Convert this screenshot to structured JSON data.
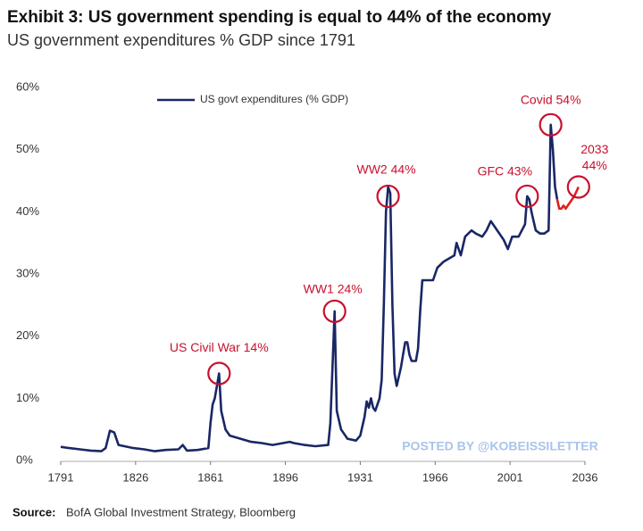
{
  "chart_data": {
    "type": "line",
    "title": "Exhibit 3: US government spending is equal to 44% of the economy",
    "subtitle": "US government expenditures % GDP since 1791",
    "source_label": "Source:",
    "source": "BofA Global Investment Strategy, Bloomberg",
    "watermark": "POSTED BY @KOBEISSILETTER",
    "xlim": [
      1791,
      2036
    ],
    "xticks": [
      1791,
      1826,
      1861,
      1896,
      1931,
      1966,
      2001,
      2036
    ],
    "ylim": [
      0,
      60
    ],
    "yticks": [
      {
        "value": 0,
        "label": "0%"
      },
      {
        "value": 10,
        "label": "10%"
      },
      {
        "value": 20,
        "label": "20%"
      },
      {
        "value": 30,
        "label": "30%"
      },
      {
        "value": 40,
        "label": "40%"
      },
      {
        "value": 50,
        "label": "50%"
      },
      {
        "value": 60,
        "label": "60%"
      }
    ],
    "grid": false,
    "legend": "top-left",
    "series": [
      {
        "name": "US govt expenditures (% GDP)",
        "color": "#1a2766",
        "x": [
          1791,
          1795,
          1800,
          1805,
          1810,
          1812,
          1814,
          1816,
          1818,
          1825,
          1830,
          1835,
          1840,
          1846,
          1848,
          1850,
          1855,
          1860,
          1861,
          1862,
          1863,
          1865,
          1866,
          1868,
          1870,
          1875,
          1880,
          1885,
          1890,
          1898,
          1900,
          1905,
          1910,
          1916,
          1917,
          1918,
          1919,
          1920,
          1922,
          1925,
          1929,
          1931,
          1933,
          1934,
          1935,
          1936,
          1937,
          1938,
          1940,
          1941,
          1942,
          1943,
          1944,
          1945,
          1946,
          1947,
          1948,
          1950,
          1951,
          1952,
          1953,
          1954,
          1955,
          1957,
          1958,
          1959,
          1960,
          1963,
          1965,
          1967,
          1970,
          1975,
          1976,
          1978,
          1980,
          1983,
          1985,
          1988,
          1990,
          1992,
          1995,
          1998,
          2000,
          2002,
          2005,
          2008,
          2009,
          2010,
          2011,
          2013,
          2015,
          2017,
          2019,
          2020,
          2021,
          2022,
          2023
        ],
        "values": [
          2.2,
          2,
          1.8,
          1.6,
          1.5,
          2,
          4.8,
          4.5,
          2.5,
          2,
          1.8,
          1.5,
          1.7,
          1.8,
          2.5,
          1.6,
          1.7,
          2,
          6,
          9,
          10,
          14,
          8,
          5,
          4,
          3.5,
          3,
          2.8,
          2.5,
          3,
          2.8,
          2.5,
          2.3,
          2.5,
          6,
          15,
          24,
          8,
          5,
          3.5,
          3.2,
          4,
          7,
          9.5,
          8.5,
          10,
          8.5,
          8,
          10,
          13,
          25,
          40,
          44,
          43,
          25,
          14,
          12,
          15,
          17,
          19,
          19,
          17,
          16,
          16,
          18,
          24,
          29,
          29,
          29,
          31,
          32,
          33,
          35,
          33,
          36,
          37,
          36.5,
          36,
          37,
          38.5,
          37,
          35.5,
          34,
          36,
          36,
          38,
          42.5,
          42,
          40,
          37,
          36.5,
          36.5,
          37,
          54,
          50,
          44,
          42
        ]
      },
      {
        "color": "#e0201b",
        "x": [
          2023,
          2024,
          2025,
          2026,
          2027,
          2029,
          2031,
          2033
        ],
        "values": [
          42,
          40.5,
          40.5,
          41,
          40.5,
          41.5,
          42.5,
          44
        ]
      }
    ],
    "annotations": [
      {
        "text": [
          "US Civil War 14%"
        ],
        "x": 1865,
        "y": 14
      },
      {
        "text": [
          "WW1 24%"
        ],
        "x": 1919,
        "y": 24
      },
      {
        "text": [
          "WW2 44%"
        ],
        "x": 1944,
        "y": 42.5
      },
      {
        "text": [
          "GFC 43%"
        ],
        "x": 2009,
        "y": 42.5
      },
      {
        "text": [
          "Covid 54%"
        ],
        "x": 2020,
        "y": 54
      },
      {
        "text": [
          "2033",
          "44%"
        ],
        "x": 2033,
        "y": 44
      }
    ]
  }
}
